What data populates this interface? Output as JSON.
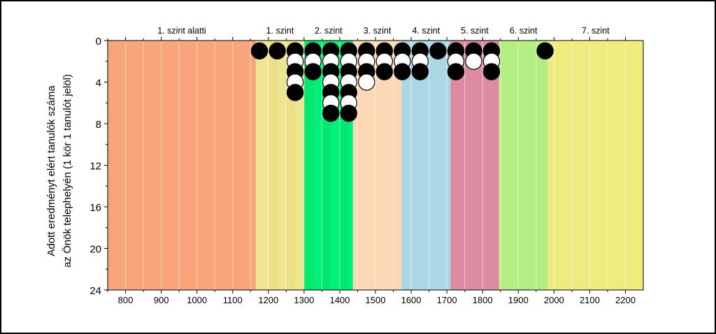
{
  "chart_data": {
    "type": "scatter",
    "ylabel_line1": "Adott eredményt elért tanulók száma",
    "ylabel_line2": "az Önök telephelyén (1 kör 1 tanulót jelöl)",
    "xlim": [
      750,
      2250
    ],
    "ylim": [
      0,
      24
    ],
    "y_inverted": true,
    "x_ticks": [
      800,
      900,
      1000,
      1100,
      1200,
      1300,
      1400,
      1500,
      1600,
      1700,
      1800,
      1900,
      2000,
      2100,
      2200
    ],
    "y_ticks": [
      0,
      4,
      8,
      12,
      16,
      20,
      24
    ],
    "levels": [
      {
        "label": "1. szint alatti",
        "from": 750,
        "to": 1165,
        "color": "#f9a57c"
      },
      {
        "label": "1. szint",
        "from": 1165,
        "to": 1300,
        "color": "#eee590"
      },
      {
        "label": "2. szint",
        "from": 1300,
        "to": 1437,
        "color": "#00f07a"
      },
      {
        "label": "3. szint",
        "from": 1437,
        "to": 1573,
        "color": "#fdd8b5"
      },
      {
        "label": "4. szint",
        "from": 1573,
        "to": 1710,
        "color": "#abd7e4"
      },
      {
        "label": "5. szint",
        "from": 1710,
        "to": 1846,
        "color": "#dd8ba0"
      },
      {
        "label": "6. szint",
        "from": 1846,
        "to": 1983,
        "color": "#b4ed83"
      },
      {
        "label": "7. szint",
        "from": 1983,
        "to": 2250,
        "color": "#efeb7f"
      }
    ],
    "stripe_colors": {
      "1. szint": "#ebe088",
      "2. szint": "#00e86d"
    },
    "grid_color": "#ffffff",
    "students": [
      {
        "x": 1175,
        "count": 1
      },
      {
        "x": 1225,
        "count": 1
      },
      {
        "x": 1275,
        "count": 5
      },
      {
        "x": 1325,
        "count": 3
      },
      {
        "x": 1375,
        "count": 7
      },
      {
        "x": 1425,
        "count": 7
      },
      {
        "x": 1475,
        "count": 4
      },
      {
        "x": 1525,
        "count": 3
      },
      {
        "x": 1575,
        "count": 3
      },
      {
        "x": 1625,
        "count": 3
      },
      {
        "x": 1675,
        "count": 1
      },
      {
        "x": 1725,
        "count": 3
      },
      {
        "x": 1775,
        "count": 2
      },
      {
        "x": 1825,
        "count": 3
      },
      {
        "x": 1975,
        "count": 1
      }
    ]
  }
}
